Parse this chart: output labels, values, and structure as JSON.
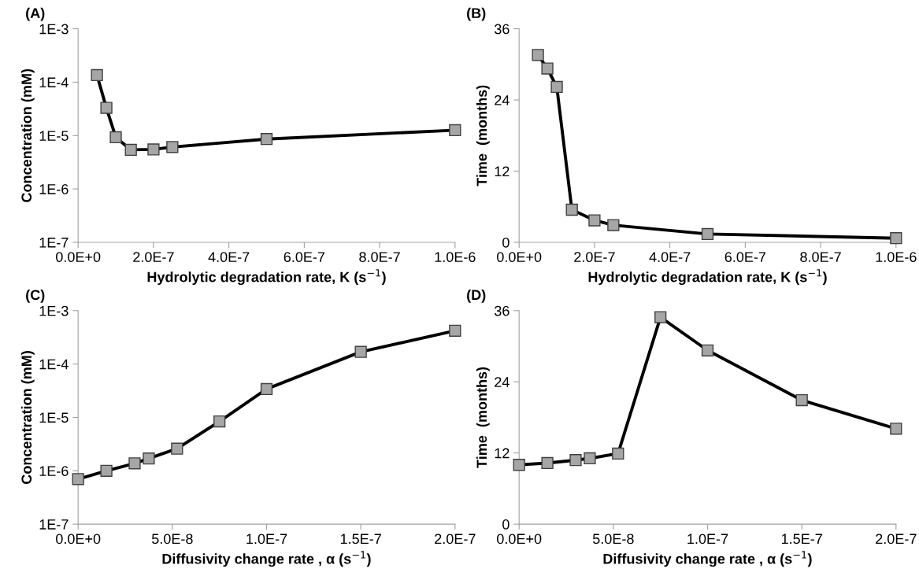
{
  "chart_data": [
    {
      "type": "line",
      "title": "(A)",
      "xlabel": "Hydrolytic degradation rate, K (s$^{−1}$)",
      "ylabel": "Concentration (mM)",
      "log": "y",
      "marker": "square",
      "line_style": "solid",
      "grid": false,
      "x": [
        5e-08,
        7.5e-08,
        1e-07,
        1.4e-07,
        2e-07,
        2.5e-07,
        5e-07,
        1e-06
      ],
      "series": [
        {
          "color": "#000000",
          "values": [
            0.000136,
            3.3e-05,
            9.3e-06,
            5.4e-06,
            5.5e-06,
            6.1e-06,
            8.6e-06,
            1.26e-05
          ]
        }
      ],
      "xlim": [
        0,
        1e-06
      ],
      "xticks": [
        {
          "value": 0,
          "label": "0.0E+0"
        },
        {
          "value": 2e-07,
          "label": "2.0E-7"
        },
        {
          "value": 4e-07,
          "label": "4.0E-7"
        },
        {
          "value": 6e-07,
          "label": "6.0E-7"
        },
        {
          "value": 8e-07,
          "label": "8.0E-7"
        },
        {
          "value": 1e-06,
          "label": "1.0E-6"
        }
      ],
      "ylim": [
        1e-07,
        0.001
      ],
      "yticks": [
        {
          "value": 1e-07,
          "label": "1E-7"
        },
        {
          "value": 1e-06,
          "label": "1E-6"
        },
        {
          "value": 1e-05,
          "label": "1E-5"
        },
        {
          "value": 0.0001,
          "label": "1E-4"
        },
        {
          "value": 0.001,
          "label": "1E-3"
        }
      ]
    },
    {
      "type": "line",
      "title": "(B)",
      "xlabel": "Hydrolytic degradation rate, K (s$^{−1}$)",
      "ylabel": "Time  (months)",
      "marker": "square",
      "line_style": "solid",
      "grid": false,
      "x": [
        5e-08,
        7.5e-08,
        1e-07,
        1.4e-07,
        2e-07,
        2.5e-07,
        5e-07,
        1e-06
      ],
      "series": [
        {
          "color": "#000000",
          "values": [
            31.6,
            29.3,
            26.2,
            5.5,
            3.7,
            2.9,
            1.4,
            0.7
          ]
        }
      ],
      "xlim": [
        0,
        1e-06
      ],
      "xticks": [
        {
          "value": 0,
          "label": "0.0E+0"
        },
        {
          "value": 2e-07,
          "label": "2.0E-7"
        },
        {
          "value": 4e-07,
          "label": "4.0E-7"
        },
        {
          "value": 6e-07,
          "label": "6.0E-7"
        },
        {
          "value": 8e-07,
          "label": "8.0E-7"
        },
        {
          "value": 1e-06,
          "label": "1.0E-6"
        }
      ],
      "ylim": [
        0,
        36
      ],
      "yticks": [
        0,
        12,
        24,
        36
      ]
    },
    {
      "type": "line",
      "title": "(C)",
      "xlabel": "Diffusivity change rate , α (s$^{−1}$)",
      "ylabel": "Concentration (mM)",
      "log": "y",
      "marker": "square",
      "line_style": "solid",
      "grid": false,
      "x": [
        0,
        1.5e-08,
        3e-08,
        3.75e-08,
        5.25e-08,
        7.5e-08,
        1e-07,
        1.5e-07,
        2e-07
      ],
      "series": [
        {
          "color": "#000000",
          "values": [
            7e-07,
            1e-06,
            1.38e-06,
            1.7e-06,
            2.6e-06,
            8.4e-06,
            3.4e-05,
            0.000169,
            0.00042
          ]
        }
      ],
      "xlim": [
        0,
        2e-07
      ],
      "xticks": [
        {
          "value": 0,
          "label": "0.0E+0"
        },
        {
          "value": 5e-08,
          "label": "5.0E-8"
        },
        {
          "value": 1e-07,
          "label": "1.0E-7"
        },
        {
          "value": 1.5e-07,
          "label": "1.5E-7"
        },
        {
          "value": 2e-07,
          "label": "2.0E-7"
        }
      ],
      "ylim": [
        1e-07,
        0.001
      ],
      "yticks": [
        {
          "value": 1e-07,
          "label": "1E-7"
        },
        {
          "value": 1e-06,
          "label": "1E-6"
        },
        {
          "value": 1e-05,
          "label": "1E-5"
        },
        {
          "value": 0.0001,
          "label": "1E-4"
        },
        {
          "value": 0.001,
          "label": "1E-3"
        }
      ]
    },
    {
      "type": "line",
      "title": "(D)",
      "xlabel": "Diffusivity change rate , α (s$^{−1}$)",
      "ylabel": "Time  (months)",
      "marker": "square",
      "line_style": "solid",
      "grid": false,
      "x": [
        0,
        1.5e-08,
        3e-08,
        3.75e-08,
        5.25e-08,
        7.5e-08,
        1e-07,
        1.5e-07,
        2e-07
      ],
      "series": [
        {
          "color": "#000000",
          "values": [
            10.0,
            10.3,
            10.8,
            11.1,
            11.9,
            34.9,
            29.3,
            20.9,
            16.1
          ]
        }
      ],
      "xlim": [
        0,
        2e-07
      ],
      "xticks": [
        {
          "value": 0,
          "label": "0.0E+0"
        },
        {
          "value": 5e-08,
          "label": "5.0E-8"
        },
        {
          "value": 1e-07,
          "label": "1.0E-7"
        },
        {
          "value": 1.5e-07,
          "label": "1.5E-7"
        },
        {
          "value": 2e-07,
          "label": "2.0E-7"
        }
      ],
      "ylim": [
        0,
        36
      ],
      "yticks": [
        0,
        12,
        24,
        36
      ]
    }
  ]
}
